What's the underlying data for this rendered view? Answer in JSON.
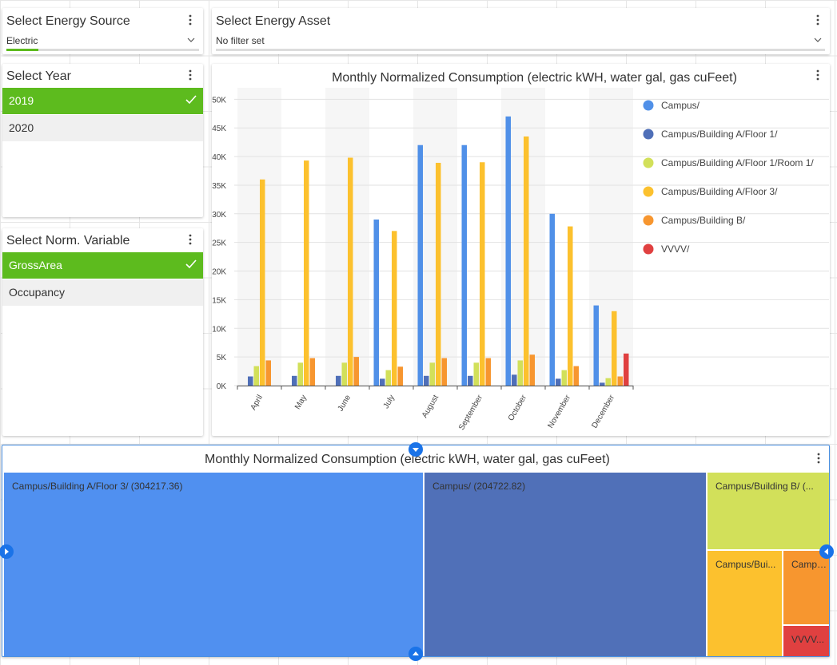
{
  "energy_source": {
    "title": "Select Energy Source",
    "value": "Electric"
  },
  "energy_asset": {
    "title": "Select Energy Asset",
    "value": "No filter set"
  },
  "year": {
    "title": "Select Year",
    "items": [
      {
        "label": "2019",
        "selected": true
      },
      {
        "label": "2020",
        "selected": false
      }
    ]
  },
  "norm_variable": {
    "title": "Select Norm. Variable",
    "items": [
      {
        "label": "GrossArea",
        "selected": true
      },
      {
        "label": "Occupancy",
        "selected": false
      }
    ]
  },
  "chart_data": [
    {
      "type": "bar",
      "title": "Monthly Normalized Consumption (electric kWH, water gal, gas cuFeet)",
      "xlabel": "",
      "ylabel": "",
      "ylim": [
        0,
        52000
      ],
      "yticks": [
        0,
        5000,
        10000,
        15000,
        20000,
        25000,
        30000,
        35000,
        40000,
        45000,
        50000
      ],
      "ytick_labels": [
        "0K",
        "5K",
        "10K",
        "15K",
        "20K",
        "25K",
        "30K",
        "35K",
        "40K",
        "45K",
        "50K"
      ],
      "grid": true,
      "legend_position": "right",
      "categories": [
        "April",
        "May",
        "June",
        "July",
        "August",
        "September",
        "October",
        "November",
        "December"
      ],
      "series": [
        {
          "name": "Campus/",
          "color": "#5090e8",
          "values": [
            0,
            0,
            0,
            29000,
            42000,
            42000,
            47000,
            30000,
            14000
          ]
        },
        {
          "name": "Campus/Building A/Floor 1/",
          "color": "#4f6fb8",
          "values": [
            1600,
            1700,
            1700,
            1200,
            1700,
            1700,
            1900,
            1200,
            500
          ]
        },
        {
          "name": "Campus/Building A/Floor 1/Room 1/",
          "color": "#d2e05a",
          "values": [
            3400,
            4000,
            4000,
            2700,
            4000,
            4000,
            4400,
            2700,
            1300
          ]
        },
        {
          "name": "Campus/Building A/Floor 3/",
          "color": "#fcc12e",
          "values": [
            36000,
            39300,
            39800,
            27000,
            38900,
            39000,
            43500,
            27800,
            13000
          ]
        },
        {
          "name": "Campus/Building B/",
          "color": "#f7962f",
          "values": [
            4400,
            4800,
            5000,
            3300,
            4800,
            4800,
            5400,
            3400,
            1600
          ]
        },
        {
          "name": "VVVV/",
          "color": "#e04040",
          "values": [
            0,
            0,
            0,
            0,
            0,
            0,
            0,
            0,
            5600
          ]
        }
      ]
    },
    {
      "type": "treemap",
      "title": "Monthly Normalized Consumption (electric kWH, water gal, gas cuFeet)",
      "items": [
        {
          "name": "Campus/Building A/Floor 3/",
          "label": "Campus/Building A/Floor 3/ (304217.36)",
          "value": 304217.36,
          "color": "#5090f0"
        },
        {
          "name": "Campus/",
          "label": "Campus/ (204722.82)",
          "value": 204722.82,
          "color": "#5070b8"
        },
        {
          "name": "Campus/Building B/",
          "label": "Campus/Building B/ (...",
          "color": "#d2e05a"
        },
        {
          "name": "Campus/Building A/Floor 1/Room 1/",
          "label": "Campus/Bui...",
          "color": "#fcc12e"
        },
        {
          "name": "Campus/Building A/Floor 1/",
          "label": "Campu...",
          "color": "#f7962f"
        },
        {
          "name": "VVVV/",
          "label": "VVVV...",
          "color": "#e04040"
        }
      ]
    }
  ]
}
